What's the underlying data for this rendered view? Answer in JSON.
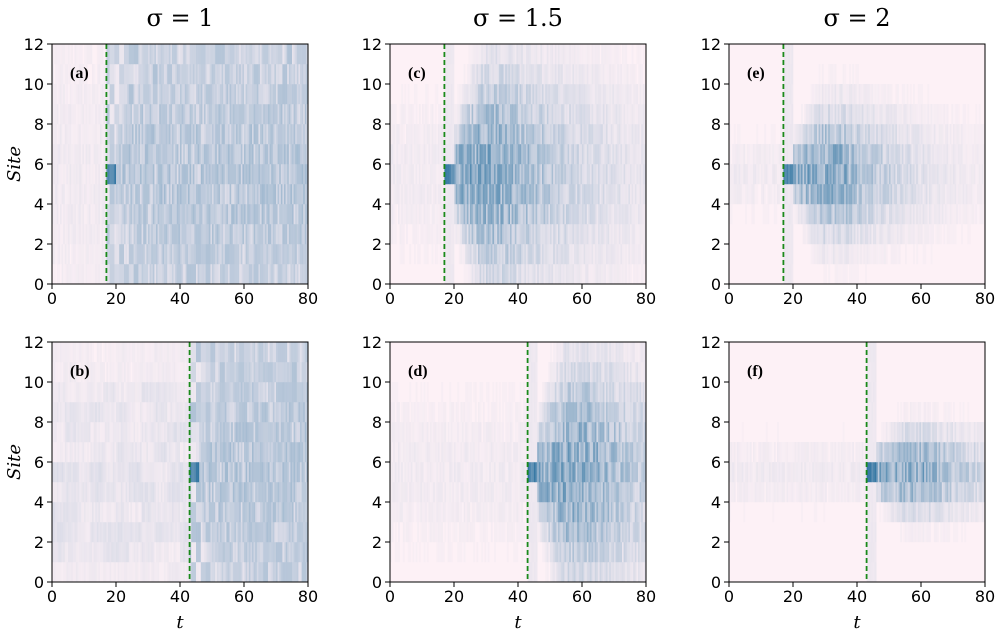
{
  "chart_data": {
    "type": "heatmap",
    "column_titles": [
      "σ = 1",
      "σ = 1.5",
      "σ = 2"
    ],
    "xlabel": "t",
    "ylabel": "Site",
    "xlim": [
      0,
      80
    ],
    "ylim": [
      0,
      12
    ],
    "x_ticks": [
      "0",
      "20",
      "40",
      "60",
      "80"
    ],
    "y_ticks": [
      "0",
      "2",
      "4",
      "6",
      "8",
      "10",
      "12"
    ],
    "colors": {
      "low": "#fdf1f6",
      "high": "#1f6a9a",
      "marker": "#1a8a1a"
    },
    "panels": [
      {
        "label": "(a)",
        "sigma": "1",
        "marker_t": 17,
        "spread": 6.0,
        "row": 0,
        "col": 0
      },
      {
        "label": "(b)",
        "sigma": "1",
        "marker_t": 43,
        "spread": 6.0,
        "row": 1,
        "col": 0
      },
      {
        "label": "(c)",
        "sigma": "1.5",
        "marker_t": 17,
        "spread": 3.0,
        "row": 0,
        "col": 1
      },
      {
        "label": "(d)",
        "sigma": "1.5",
        "marker_t": 43,
        "spread": 3.0,
        "row": 1,
        "col": 1
      },
      {
        "label": "(e)",
        "sigma": "2",
        "marker_t": 17,
        "spread": 1.5,
        "row": 0,
        "col": 2
      },
      {
        "label": "(f)",
        "sigma": "2",
        "marker_t": 43,
        "spread": 0.8,
        "row": 1,
        "col": 2
      }
    ]
  }
}
